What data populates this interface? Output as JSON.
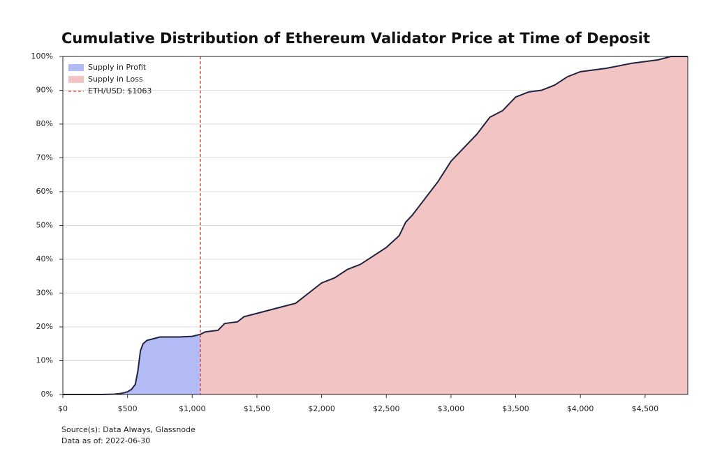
{
  "chart_data": {
    "type": "area",
    "title": "Cumulative Distribution of Ethereum Validator Price at Time of Deposit",
    "source": "Source(s): Data Always, Glassnode",
    "date_note": "Data as of: 2022-06-30",
    "xlim": [
      0,
      4830
    ],
    "ylim": [
      0,
      100
    ],
    "xticks": [
      {
        "value": 0,
        "label": "$0"
      },
      {
        "value": 500,
        "label": "$500"
      },
      {
        "value": 1000,
        "label": "$1,000"
      },
      {
        "value": 1500,
        "label": "$1,500"
      },
      {
        "value": 2000,
        "label": "$2,000"
      },
      {
        "value": 2500,
        "label": "$2,500"
      },
      {
        "value": 3000,
        "label": "$3,000"
      },
      {
        "value": 3500,
        "label": "$3,500"
      },
      {
        "value": 4000,
        "label": "$4,000"
      },
      {
        "value": 4500,
        "label": "$4,500"
      }
    ],
    "yticks": [
      {
        "value": 0,
        "label": "0%"
      },
      {
        "value": 10,
        "label": "10%"
      },
      {
        "value": 20,
        "label": "20%"
      },
      {
        "value": 30,
        "label": "30%"
      },
      {
        "value": 40,
        "label": "40%"
      },
      {
        "value": 50,
        "label": "50%"
      },
      {
        "value": 60,
        "label": "60%"
      },
      {
        "value": 70,
        "label": "70%"
      },
      {
        "value": 80,
        "label": "80%"
      },
      {
        "value": 90,
        "label": "90%"
      },
      {
        "value": 100,
        "label": "100%"
      }
    ],
    "grid": true,
    "legend": "upper left",
    "line_color": "#1f2340",
    "series": [
      {
        "name": "Supply in Profit",
        "color": "#b3bbf5",
        "x": [
          0,
          100,
          200,
          300,
          400,
          450,
          500,
          530,
          560,
          580,
          600,
          620,
          650,
          700,
          750,
          800,
          900,
          1000,
          1063
        ],
        "values": [
          0,
          0,
          0,
          0,
          0.1,
          0.3,
          0.8,
          1.5,
          3,
          7,
          13,
          15,
          16,
          16.5,
          17,
          17,
          17,
          17.2,
          17.8
        ]
      },
      {
        "name": "Supply in Loss",
        "color": "#f2c4c4",
        "x": [
          1063,
          1100,
          1200,
          1250,
          1350,
          1400,
          1500,
          1600,
          1700,
          1800,
          1900,
          2000,
          2100,
          2200,
          2300,
          2400,
          2500,
          2600,
          2650,
          2700,
          2800,
          2900,
          3000,
          3100,
          3200,
          3300,
          3400,
          3500,
          3600,
          3700,
          3800,
          3900,
          4000,
          4200,
          4400,
          4600,
          4700,
          4830
        ],
        "values": [
          17.8,
          18.5,
          19,
          21,
          21.5,
          23,
          24,
          25,
          26,
          27,
          30,
          33,
          34.5,
          37,
          38.5,
          41,
          43.5,
          47,
          51,
          53,
          58,
          63,
          69,
          73,
          77,
          82,
          84,
          88,
          89.5,
          90,
          91.5,
          94,
          95.5,
          96.5,
          98,
          99,
          100,
          100
        ]
      }
    ],
    "reference_line": {
      "name": "ETH/USD: $1063",
      "value": 1063,
      "color": "#d9342b"
    }
  }
}
